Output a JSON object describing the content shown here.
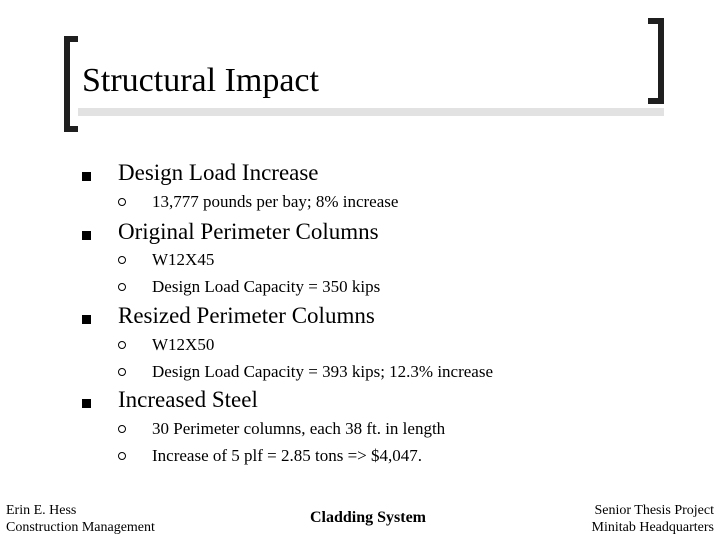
{
  "title": "Structural Impact",
  "sections": [
    {
      "heading": "Design Load Increase",
      "items": [
        "13,777 pounds per bay; 8% increase"
      ]
    },
    {
      "heading": "Original Perimeter Columns",
      "items": [
        "W12X45",
        "Design Load Capacity = 350 kips"
      ]
    },
    {
      "heading": "Resized Perimeter Columns",
      "items": [
        "W12X50",
        "Design Load Capacity = 393 kips; 12.3% increase"
      ]
    },
    {
      "heading": "Increased Steel",
      "items": [
        "30 Perimeter columns, each 38 ft. in length",
        "Increase of 5 plf = 2.85 tons => $4,047."
      ]
    }
  ],
  "footer": {
    "left": [
      "Erin E. Hess",
      "Construction Management"
    ],
    "center": "Cladding System",
    "right": [
      "Senior Thesis Project",
      "Minitab Headquarters"
    ]
  }
}
